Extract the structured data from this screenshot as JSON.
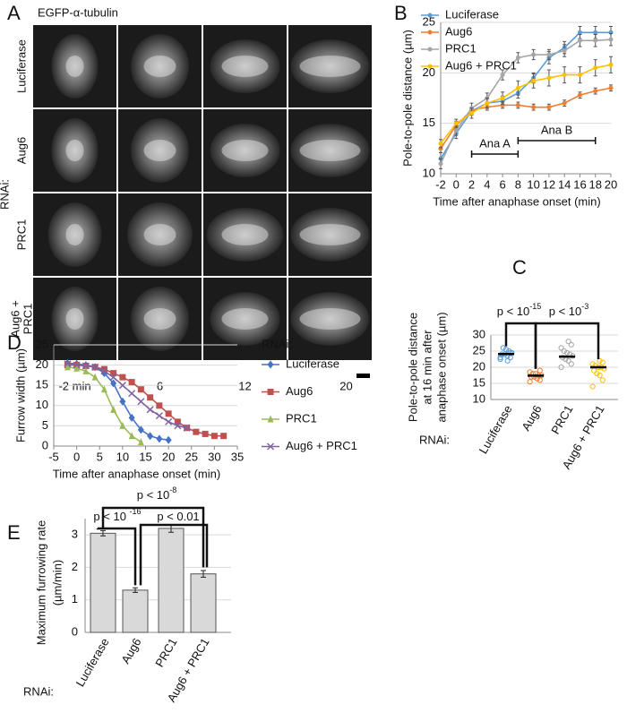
{
  "panel_a": {
    "panel": "A",
    "title": "EGFP-α-tubulin",
    "group_label": "RNAi:",
    "rows": [
      [
        "Luciferase"
      ],
      [
        "Aug6"
      ],
      [
        "PRC1"
      ],
      [
        "Aug6 +",
        "PRC1"
      ]
    ],
    "columns": [
      "-2 min",
      "6",
      "12",
      "20"
    ]
  },
  "chart_data": [
    {
      "panel": "B",
      "type": "line",
      "ylabel": "Pole-to-pole distance (µm)",
      "xlabel": "Time after anaphase onset (min)",
      "x": [
        -2,
        0,
        2,
        4,
        6,
        8,
        10,
        12,
        14,
        16,
        18,
        20
      ],
      "xlim": [
        -2,
        20
      ],
      "xticks": [
        -2,
        0,
        2,
        4,
        6,
        8,
        10,
        12,
        14,
        16,
        18,
        20
      ],
      "ylim": [
        10,
        25
      ],
      "yticks": [
        10,
        15,
        20,
        25
      ],
      "grid": true,
      "legend": "top-left",
      "marker": "circle",
      "series": [
        {
          "name": "Luciferase",
          "color": "#5b9bd5",
          "values": [
            11.5,
            14,
            16.2,
            17,
            17.2,
            18,
            19.5,
            21.5,
            22.5,
            24,
            24,
            24
          ],
          "errors": [
            0.6,
            0.5,
            0.4,
            0.4,
            0.5,
            0.5,
            0.5,
            0.6,
            0.6,
            0.6,
            0.6,
            0.6
          ]
        },
        {
          "name": "Aug6",
          "color": "#ed7d31",
          "values": [
            12.5,
            14.8,
            16.3,
            16.6,
            16.8,
            16.8,
            16.6,
            16.6,
            17,
            17.8,
            18.2,
            18.5
          ],
          "errors": [
            0.4,
            0.4,
            0.3,
            0.3,
            0.3,
            0.3,
            0.3,
            0.3,
            0.3,
            0.3,
            0.3,
            0.3
          ]
        },
        {
          "name": "PRC1",
          "color": "#a5a5a5",
          "values": [
            11,
            14.3,
            16.5,
            17.5,
            19.8,
            21.5,
            21.8,
            21.8,
            22.2,
            23.2,
            23.2,
            23.3
          ],
          "errors": [
            0.5,
            0.5,
            0.5,
            0.5,
            0.5,
            0.5,
            0.5,
            0.5,
            0.6,
            0.6,
            0.6,
            0.6
          ]
        },
        {
          "name": "Aug6 + PRC1",
          "color": "#ffc000",
          "values": [
            13,
            15,
            16,
            17,
            17.5,
            18.5,
            19.2,
            19.5,
            19.8,
            19.8,
            20.5,
            20.8
          ],
          "errors": [
            0.4,
            0.4,
            0.5,
            0.5,
            0.6,
            0.7,
            0.7,
            0.8,
            0.8,
            0.8,
            0.8,
            0.8
          ]
        }
      ],
      "annotations": [
        {
          "text": "Ana A",
          "x": [
            2,
            8
          ]
        },
        {
          "text": "Ana B",
          "x": [
            8,
            18
          ]
        }
      ]
    },
    {
      "panel": "D",
      "type": "line",
      "ylabel": "Furrow width (µm)",
      "xlabel": "Time after anaphase onset (min)",
      "xlim": [
        -5,
        35
      ],
      "xticks": [
        -5,
        0,
        5,
        10,
        15,
        20,
        25,
        30,
        35
      ],
      "ylim": [
        0,
        25
      ],
      "yticks": [
        0,
        5,
        10,
        15,
        20,
        25
      ],
      "grid": true,
      "legend": "right",
      "legend_title": "RNAi:",
      "series": [
        {
          "name": "Luciferase",
          "color": "#4472c4",
          "marker": "diamond",
          "x": [
            -2,
            0,
            2,
            4,
            6,
            8,
            10,
            12,
            14,
            16,
            18,
            20
          ],
          "values": [
            20.5,
            20.3,
            20,
            19.5,
            18,
            15.5,
            11,
            7,
            4,
            2.5,
            1.8,
            1.5
          ]
        },
        {
          "name": "Aug6",
          "color": "#c0504d",
          "marker": "square",
          "x": [
            -2,
            0,
            2,
            4,
            6,
            8,
            10,
            12,
            14,
            16,
            18,
            20,
            22,
            24,
            26,
            28,
            30,
            32
          ],
          "values": [
            20,
            20,
            19.8,
            19.5,
            19,
            18,
            17,
            15.8,
            14,
            12,
            10,
            8,
            6,
            4.5,
            3.5,
            3,
            2.5,
            2.5
          ]
        },
        {
          "name": "PRC1",
          "color": "#9bbb59",
          "marker": "triangle",
          "x": [
            -2,
            0,
            2,
            4,
            6,
            8,
            10,
            12,
            14
          ],
          "values": [
            19.5,
            19.2,
            18.5,
            17,
            14,
            9,
            5,
            2.5,
            1
          ]
        },
        {
          "name": "Aug6 + PRC1",
          "color": "#8064a2",
          "marker": "x",
          "x": [
            -2,
            0,
            2,
            4,
            6,
            8,
            10,
            12,
            14,
            16,
            18,
            20,
            22,
            24
          ],
          "values": [
            20.3,
            20,
            19.8,
            19.5,
            18.5,
            17,
            15,
            13,
            11,
            9,
            7.5,
            6,
            5,
            4.5
          ]
        }
      ]
    },
    {
      "panel": "C",
      "type": "dot",
      "ylabel": [
        "Pole-to-pole distance",
        "at 16 min after",
        "anaphase onset (µm)"
      ],
      "group_label": "RNAi:",
      "categories": [
        "Luciferase",
        "Aug6",
        "PRC1",
        "Aug6 + PRC1"
      ],
      "ylim": [
        10,
        30
      ],
      "yticks": [
        10,
        15,
        20,
        25,
        30
      ],
      "grid": true,
      "colors": [
        "#5b9bd5",
        "#ed7d31",
        "#a5a5a5",
        "#ffc000"
      ],
      "points": [
        [
          22.5,
          23,
          23.5,
          24,
          24,
          24.5,
          25,
          25.5,
          26,
          23,
          24.5,
          22
        ],
        [
          15.5,
          16,
          16.5,
          17,
          17,
          17.5,
          17.5,
          18,
          18,
          18.5,
          19,
          16.5
        ],
        [
          20,
          21,
          22,
          22.5,
          23,
          23.5,
          24,
          24.5,
          25,
          26,
          27,
          28
        ],
        [
          14,
          16,
          17.5,
          18,
          19,
          19.5,
          20,
          20,
          20.5,
          21,
          21.5,
          22
        ]
      ],
      "means": [
        24.1,
        17.4,
        23.3,
        20
      ],
      "annotations": [
        {
          "text": "p < 10",
          "sup": "-15"
        },
        {
          "text": "p < 10",
          "sup": "-3"
        }
      ]
    },
    {
      "panel": "E",
      "type": "bar",
      "ylabel": [
        "Maximum furrowing rate",
        "(µm/min)"
      ],
      "group_label": "RNAi:",
      "categories": [
        "Luciferase",
        "Aug6",
        "PRC1",
        "Aug6 + PRC1"
      ],
      "values": [
        3.05,
        1.3,
        3.2,
        1.8
      ],
      "errors": [
        0.08,
        0.07,
        0.12,
        0.1
      ],
      "color": "#d9d9d9",
      "ylim": [
        0,
        3.5
      ],
      "yticks": [
        0,
        1,
        2,
        3
      ],
      "grid": true,
      "annotations": [
        {
          "text": "p < 10",
          "sup": "-8"
        },
        {
          "text": "p < 10 ",
          "sup": "-16"
        },
        {
          "text": "p < 0.01"
        }
      ]
    }
  ]
}
